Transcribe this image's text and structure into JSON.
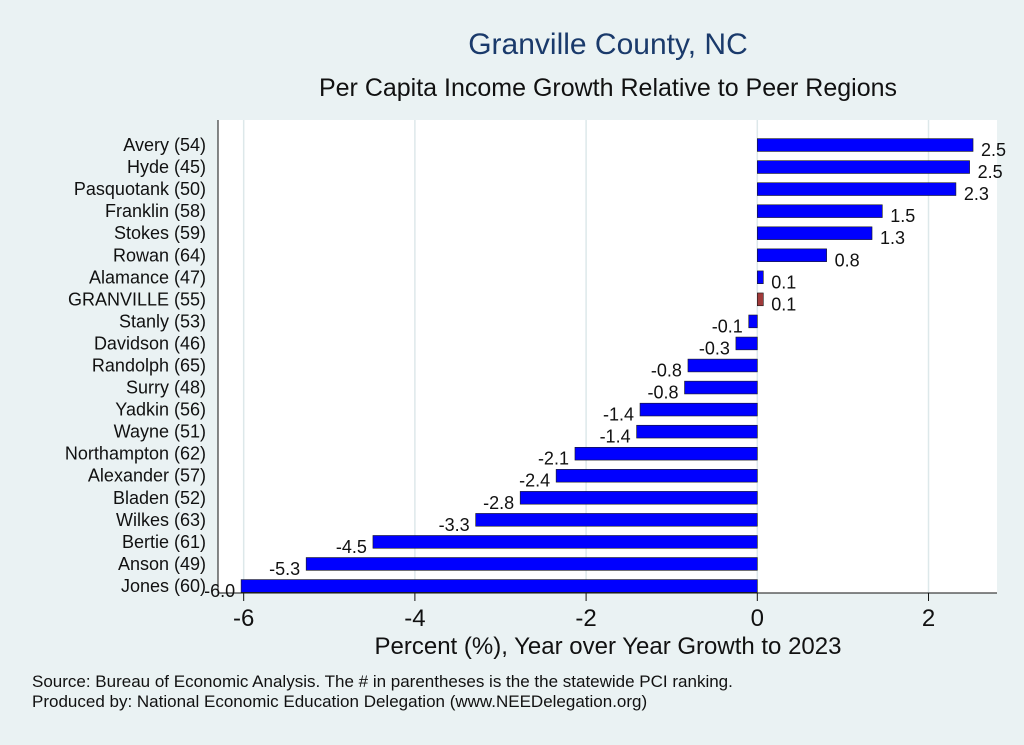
{
  "title": "Granville County, NC",
  "subtitle": "Per Capita Income Growth Relative to Peer Regions",
  "colors": {
    "background": "#eaf2f3",
    "plot_background": "#ffffff",
    "bar": "#0000ff",
    "highlight_bar": "#a03a3a",
    "grid": "#dde8ea"
  },
  "notes": {
    "source": "Source: Bureau of Economic Analysis. The # in parentheses is the the statewide PCI ranking.",
    "produced": "Produced by: National Economic Education Delegation (www.NEEDelegation.org)"
  },
  "chart_data": {
    "type": "bar",
    "orientation": "horizontal",
    "title": "Granville County, NC",
    "subtitle": "Per Capita Income Growth Relative to Peer Regions",
    "xlabel": "Percent (%), Year over Year Growth to 2023",
    "ylabel": "",
    "xlim": [
      -6.3,
      2.8
    ],
    "xticks": [
      -6,
      -4,
      -2,
      0,
      2
    ],
    "grid": true,
    "highlight": "GRANVILLE (55)",
    "categories": [
      "Avery (54)",
      "Hyde (45)",
      "Pasquotank (50)",
      "Franklin (58)",
      "Stokes (59)",
      "Rowan (64)",
      "Alamance (47)",
      "GRANVILLE (55)",
      "Stanly (53)",
      "Davidson (46)",
      "Randolph (65)",
      "Surry (48)",
      "Yadkin (56)",
      "Wayne (51)",
      "Northampton (62)",
      "Alexander (57)",
      "Bladen (52)",
      "Wilkes (63)",
      "Bertie (61)",
      "Anson (49)",
      "Jones (60)"
    ],
    "values": [
      2.52,
      2.48,
      2.32,
      1.46,
      1.34,
      0.81,
      0.07,
      0.07,
      -0.1,
      -0.25,
      -0.81,
      -0.85,
      -1.37,
      -1.41,
      -2.13,
      -2.35,
      -2.77,
      -3.29,
      -4.49,
      -5.27,
      -6.03
    ],
    "labels": [
      "2.5",
      "2.5",
      "2.3",
      "1.5",
      "1.3",
      "0.8",
      "0.1",
      "0.1",
      "-0.1",
      "-0.3",
      "-0.8",
      "-0.8",
      "-1.4",
      "-1.4",
      "-2.1",
      "-2.4",
      "-2.8",
      "-3.3",
      "-4.5",
      "-5.3",
      "-6.0"
    ]
  }
}
